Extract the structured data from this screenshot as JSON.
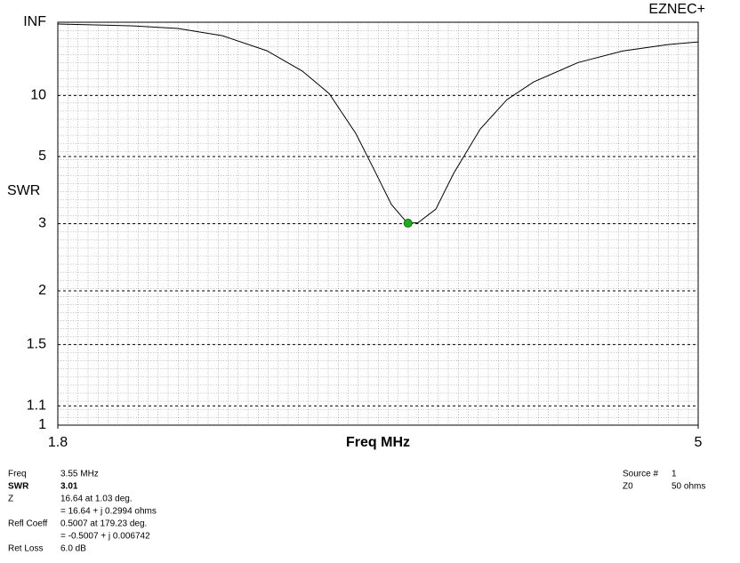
{
  "chart_data": {
    "type": "line",
    "title": "EZNEC+",
    "ylabel": "SWR",
    "xlabel": "Freq MHz",
    "y_scale": "swr",
    "x": [
      1.8,
      2.178,
      2.4,
      2.622,
      2.844,
      3.022,
      3.156,
      3.289,
      3.378,
      3.467,
      3.547,
      3.6,
      3.689,
      3.778,
      3.911,
      4.044,
      4.178,
      4.4,
      4.622,
      4.844,
      5
    ],
    "series": [
      {
        "color": "#000000",
        "values": [
          450,
          220,
          128,
          59,
          27.3,
          15.5,
          10.3,
          6.25,
          4.5,
          3.42,
          3.01,
          3.02,
          3.31,
          4.33,
          6.55,
          9.4,
          12.5,
          19,
          27,
          35,
          40
        ]
      }
    ],
    "marker": {
      "x": 3.55,
      "value": 3.01,
      "color": "#22aa22"
    },
    "xlim": [
      1.8,
      5
    ],
    "xticks": [
      1.8,
      5
    ],
    "ylim": [
      1,
      null
    ],
    "yticks": [
      1,
      1.1,
      1.5,
      2,
      3,
      5,
      10,
      {
        "value": null,
        "label": "INF"
      }
    ],
    "grid": true
  },
  "info": {
    "left": [
      {
        "label": "Freq",
        "value": "3.55 MHz"
      },
      {
        "label": "SWR",
        "value": "3.01"
      },
      {
        "label": "Z",
        "value": "16.64 at 1.03 deg."
      },
      {
        "value": "= 16.64 + j 0.2994 ohms"
      },
      {
        "label": "Refl Coeff",
        "value": "0.5007 at 179.23 deg."
      },
      {
        "value": "= -0.5007 + j 0.006742"
      },
      {
        "label": "Ret Loss",
        "value": "6.0 dB"
      }
    ],
    "right": [
      {
        "label": "Source #",
        "value": "1"
      },
      {
        "label": "Z0",
        "value": "50 ohms"
      }
    ]
  }
}
